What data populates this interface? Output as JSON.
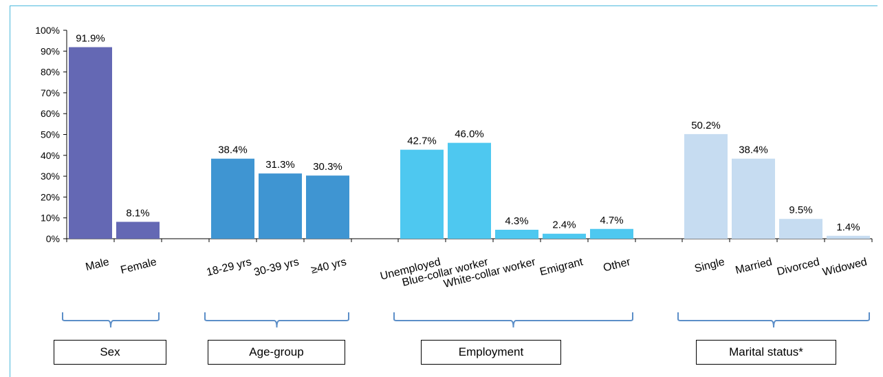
{
  "chart_data": {
    "type": "bar",
    "ylim": [
      0,
      100
    ],
    "yticks": [
      "0%",
      "10%",
      "20%",
      "30%",
      "40%",
      "50%",
      "60%",
      "70%",
      "80%",
      "90%",
      "100%"
    ],
    "grid": false,
    "groups": [
      {
        "name": "Sex",
        "color": "#6468b4",
        "categories": [
          "Male",
          "Female"
        ],
        "values": [
          91.9,
          8.1
        ],
        "labels": [
          "91.9%",
          "8.1%"
        ]
      },
      {
        "name": "Age-group",
        "color": "#3f95d2",
        "categories": [
          "18-29 yrs",
          "30-39 yrs",
          "≥40 yrs"
        ],
        "values": [
          38.4,
          31.3,
          30.3
        ],
        "labels": [
          "38.4%",
          "31.3%",
          "30.3%"
        ]
      },
      {
        "name": "Employment",
        "color": "#4ec8f0",
        "categories": [
          "Unemployed",
          "Blue-collar worker",
          "White-collar worker",
          "Emigrant",
          "Other"
        ],
        "values": [
          42.7,
          46.0,
          4.3,
          2.4,
          4.7
        ],
        "labels": [
          "42.7%",
          "46.0%",
          "4.3%",
          "2.4%",
          "4.7%"
        ]
      },
      {
        "name": "Marital status*",
        "color": "#c6dcf1",
        "categories": [
          "Single",
          "Married",
          "Divorced",
          "Widowed"
        ],
        "values": [
          50.2,
          38.4,
          9.5,
          1.4
        ],
        "labels": [
          "50.2%",
          "38.4%",
          "9.5%",
          "1.4%"
        ]
      }
    ]
  },
  "colors": {
    "frame": "#4bb8dc",
    "axis": "#000000",
    "brace": "#5b8ec8"
  }
}
